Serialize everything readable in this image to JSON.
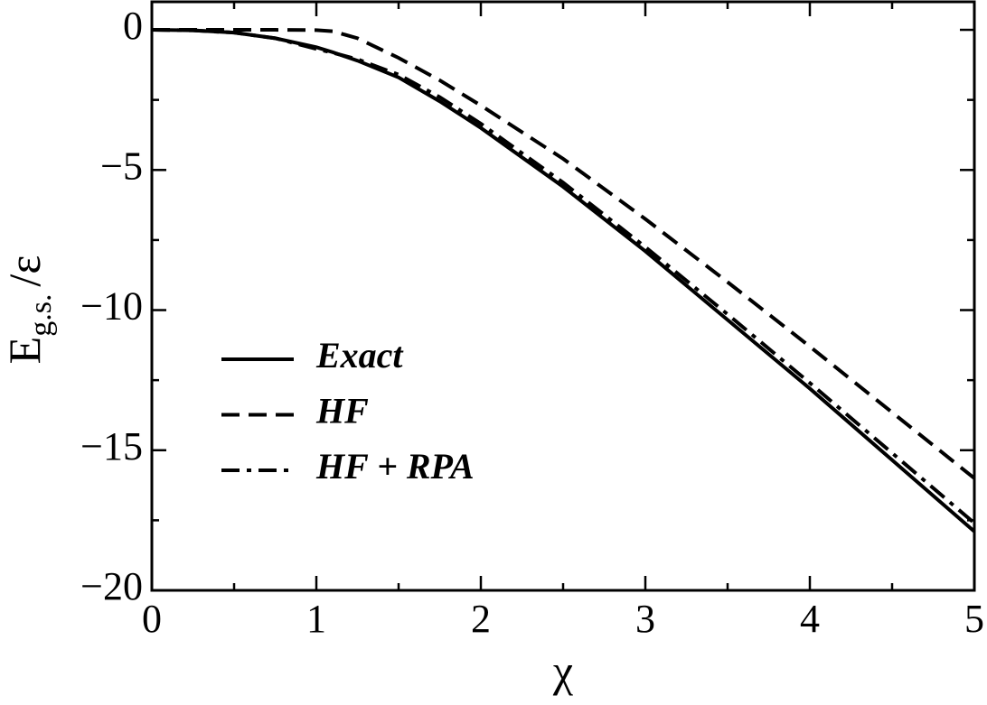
{
  "chart_data": {
    "type": "line",
    "x_label": "χ",
    "y_label": "E",
    "y_label_sub": "g.s.",
    "y_label_suffix": "/ε",
    "x": [
      0,
      0.25,
      0.5,
      0.75,
      1,
      1.1,
      1.25,
      1.5,
      1.75,
      2,
      2.5,
      3,
      3.5,
      4,
      4.5,
      5
    ],
    "series": [
      {
        "name": "Exact",
        "color": "#000000",
        "style": "solid",
        "values": [
          0,
          -0.02,
          -0.1,
          -0.3,
          -0.62,
          -0.8,
          -1.1,
          -1.7,
          -2.55,
          -3.5,
          -5.6,
          -7.9,
          -10.35,
          -12.8,
          -15.35,
          -17.9
        ]
      },
      {
        "name": "HF",
        "color": "#000000",
        "style": "dashed",
        "values": [
          0,
          0,
          0,
          0,
          -0.01,
          -0.05,
          -0.3,
          -1.0,
          -1.8,
          -2.7,
          -4.6,
          -6.75,
          -9.0,
          -11.3,
          -13.65,
          -16.0
        ]
      },
      {
        "name": "HF + RPA",
        "color": "#000000",
        "style": "dashdot",
        "values": [
          0,
          -0.02,
          -0.1,
          -0.3,
          -0.68,
          -0.82,
          -1.05,
          -1.6,
          -2.4,
          -3.35,
          -5.45,
          -7.75,
          -10.15,
          -12.6,
          -15.1,
          -17.6
        ]
      }
    ],
    "xlim": [
      0,
      5
    ],
    "ylim": [
      -20,
      1
    ],
    "xticks": [
      0,
      1,
      2,
      3,
      4,
      5
    ],
    "yticks": [
      0,
      {
        "value": -5,
        "label": "−5"
      },
      {
        "value": -10,
        "label": "−10"
      },
      {
        "value": -15,
        "label": "−15"
      },
      {
        "value": -20,
        "label": "−20"
      }
    ],
    "xminorticks": [
      0.5,
      1.5,
      2.5,
      3.5,
      4.5
    ],
    "yminorticks": [
      -2.5,
      -7.5,
      -12.5,
      -17.5
    ],
    "grid": false
  }
}
